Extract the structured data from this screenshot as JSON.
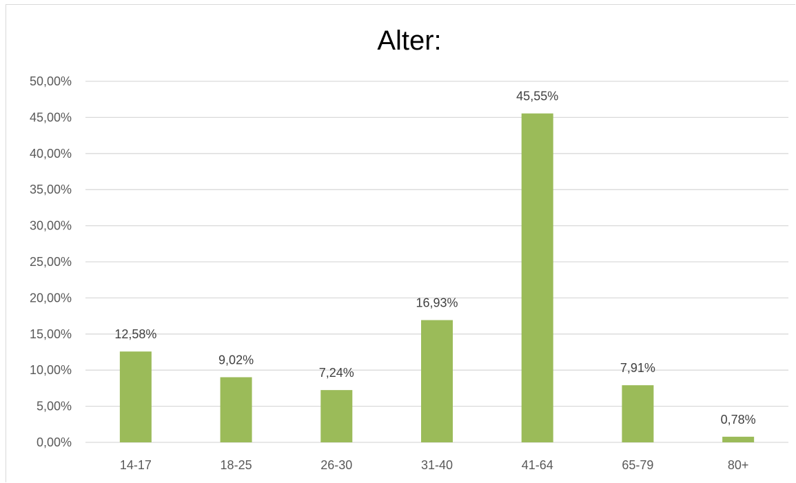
{
  "chart_data": {
    "type": "bar",
    "title": "Alter:",
    "categories": [
      "14-17",
      "18-25",
      "26-30",
      "31-40",
      "41-64",
      "65-79",
      "80+"
    ],
    "values": [
      12.58,
      9.02,
      7.24,
      16.93,
      45.55,
      7.91,
      0.78
    ],
    "data_labels": [
      "12,58%",
      "9,02%",
      "7,24%",
      "16,93%",
      "45,55%",
      "7,91%",
      "0,78%"
    ],
    "ylim": [
      0,
      50
    ],
    "yticks": [
      0,
      5,
      10,
      15,
      20,
      25,
      30,
      35,
      40,
      45,
      50
    ],
    "ytick_labels": [
      "0,00%",
      "5,00%",
      "10,00%",
      "15,00%",
      "20,00%",
      "25,00%",
      "30,00%",
      "35,00%",
      "40,00%",
      "45,00%",
      "50,00%"
    ],
    "xlabel": "",
    "ylabel": "",
    "grid": true,
    "legend": "none",
    "colors": {
      "bar": "#9bbb59",
      "grid": "#d9d9d9",
      "axis_text": "#595959",
      "title": "#000000"
    }
  }
}
